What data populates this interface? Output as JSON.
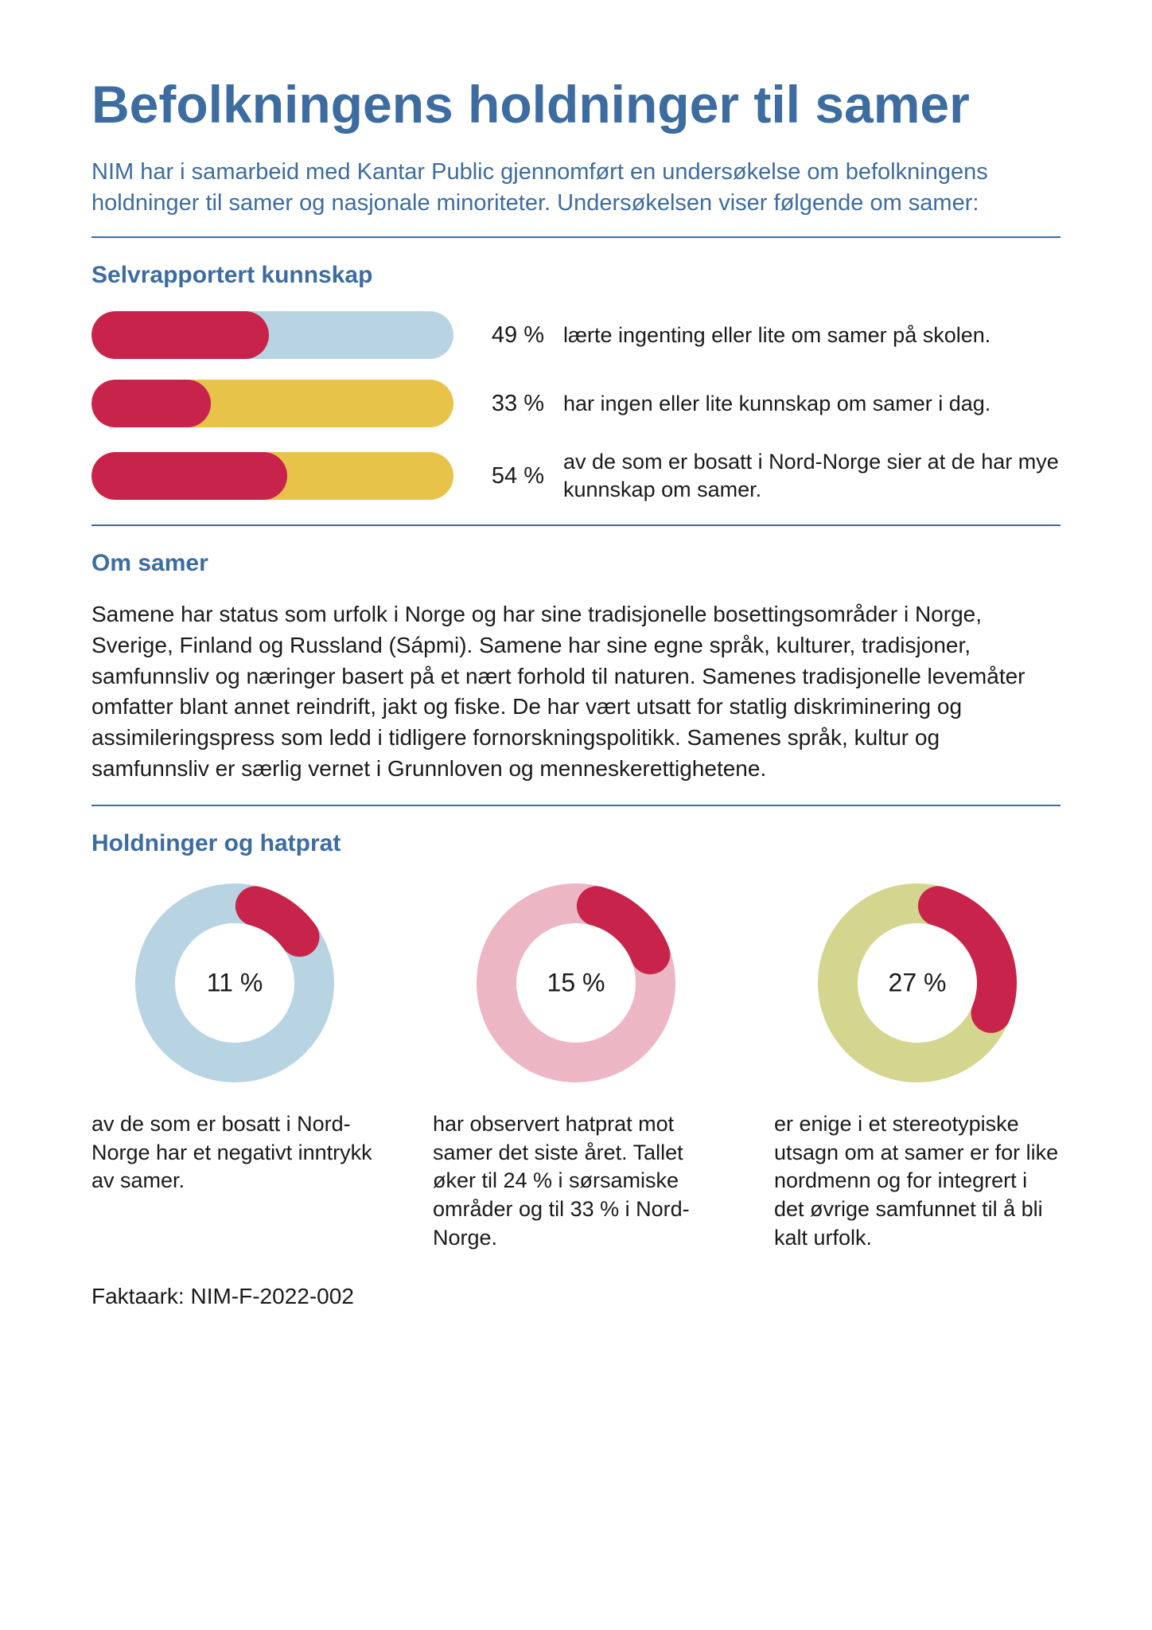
{
  "colors": {
    "title": "#3c6ca0",
    "intro": "#3c6ca0",
    "hr": "#3c6ca0",
    "section": "#3c6ca0",
    "text": "#1a1a1a",
    "accent": "#c8234a"
  },
  "title": "Befolkningens holdninger til samer",
  "intro": "NIM har i samarbeid med Kantar Public gjennomført en undersøkelse om befolkningens holdninger til samer og nasjonale minoriteter. Undersøkelsen viser følgende om samer:",
  "section1": {
    "heading": "Selvrapportert kunnskap",
    "bars": [
      {
        "pct": 49,
        "pct_label": "49 %",
        "track_color": "#b8d4e3",
        "fill_color": "#c8234a",
        "desc": "lærte ingenting eller lite om samer på skolen."
      },
      {
        "pct": 33,
        "pct_label": "33 %",
        "track_color": "#e8c34a",
        "fill_color": "#c8234a",
        "desc": "har ingen eller lite kunnskap om samer i dag."
      },
      {
        "pct": 54,
        "pct_label": "54 %",
        "track_color": "#e8c34a",
        "fill_color": "#c8234a",
        "desc": "av de som er bosatt i Nord-Norge sier at de har mye kunnskap om samer."
      }
    ]
  },
  "section2": {
    "heading": "Om samer",
    "body": "Samene har status som urfolk i Norge og har sine tradisjonelle bosettingsområder i Norge, Sverige, Finland og Russland (Sápmi). Samene har sine egne språk, kulturer, tradisjoner, samfunnsliv og næringer basert på et nært forhold til naturen. Samenes tradisjonelle levemåter omfatter blant annet reindrift, jakt og fiske. De har vært utsatt for statlig diskriminering og assimileringspress som ledd i tidligere fornorskningspolitikk. Samenes språk, kultur og samfunnsliv er særlig vernet i Grunnloven og menneskerettighetene."
  },
  "section3": {
    "heading": "Holdninger og hatprat",
    "donuts": [
      {
        "pct": 11,
        "pct_label": "11 %",
        "ring_color": "#b8d4e3",
        "seg_color": "#c8234a",
        "desc": "av de som er bosatt i Nord-Norge har et nega­tivt inntrykk av samer."
      },
      {
        "pct": 15,
        "pct_label": "15 %",
        "ring_color": "#edb6c4",
        "seg_color": "#c8234a",
        "desc": "har observert hatprat mot samer det siste året. Tallet øker til 24 % i sørsamiske områder og til 33 % i Nord-Norge."
      },
      {
        "pct": 27,
        "pct_label": "27 %",
        "ring_color": "#d4d68f",
        "seg_color": "#c8234a",
        "desc": "er enige i et stereo­typiske utsagn om at samer er for like nord­menn og for integrert i det øvrige samfunnet til å bli kalt urfolk."
      }
    ]
  },
  "footer": "Faktaark: NIM-F-2022-002",
  "donut_geom": {
    "r": 100,
    "stroke": 50,
    "circ": 628.3
  }
}
